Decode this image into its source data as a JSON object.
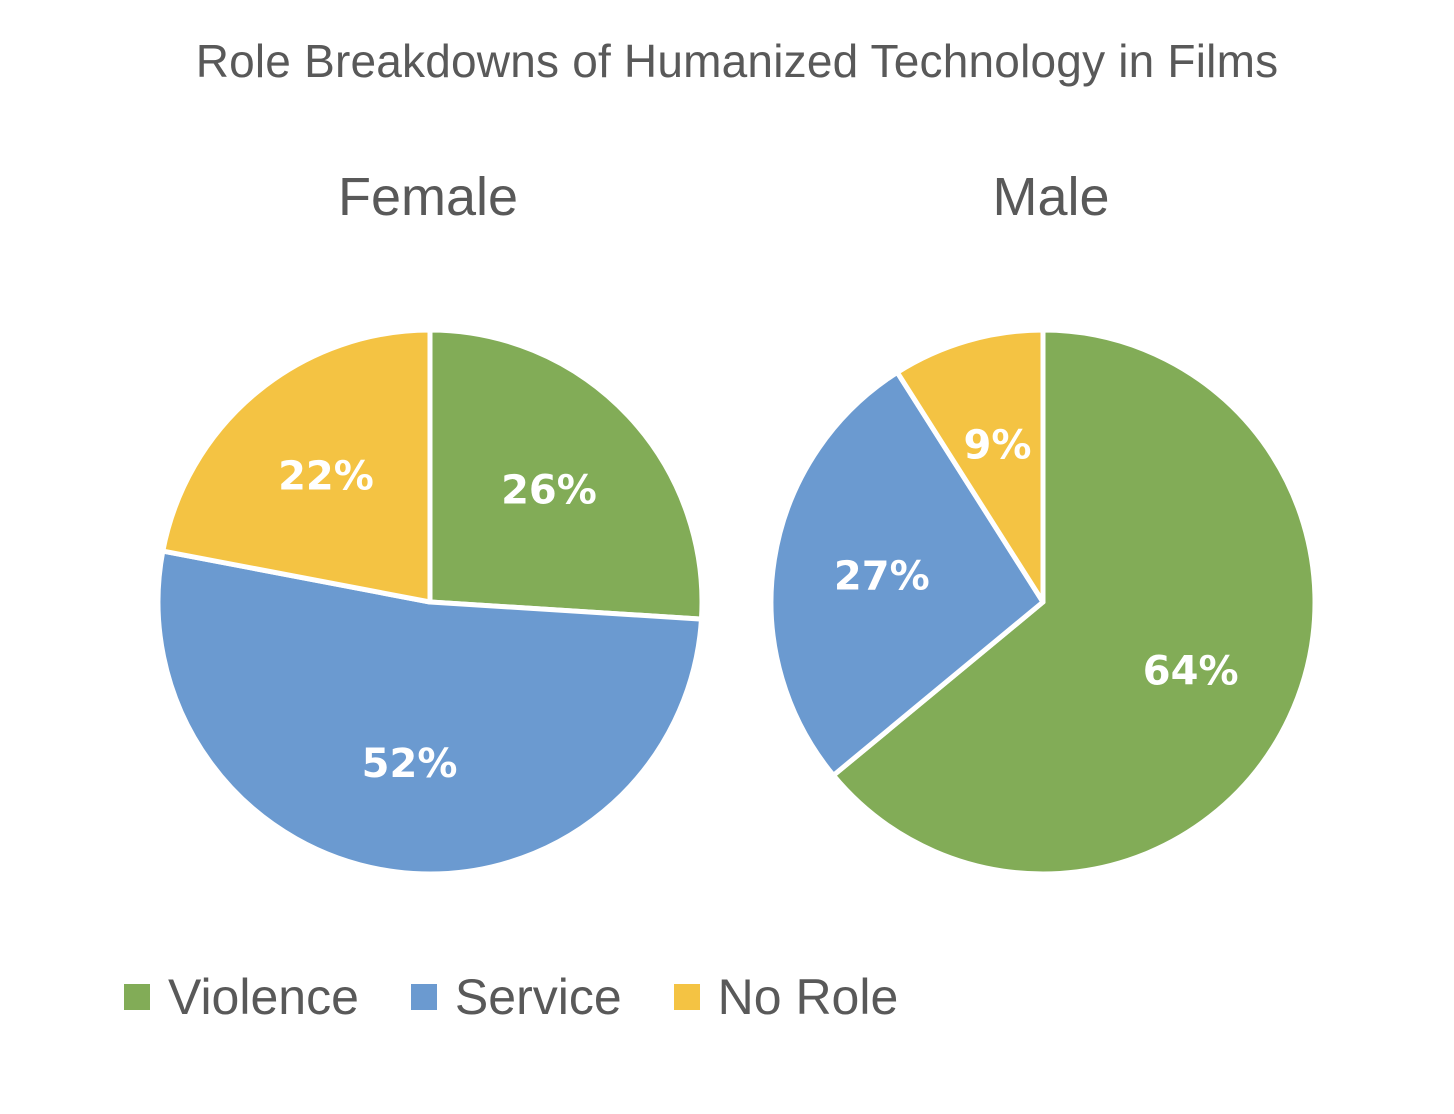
{
  "chart_data": {
    "type": "pie",
    "title": "Role Breakdowns of Humanized Technology in Films",
    "categories": [
      "Violence",
      "Service",
      "No Role"
    ],
    "colors": [
      "#82AC57",
      "#6B9AD0",
      "#F4C343"
    ],
    "series": [
      {
        "name": "Female",
        "values": [
          26,
          52,
          22
        ],
        "labels": [
          "26%",
          "52%",
          "22%"
        ]
      },
      {
        "name": "Male",
        "values": [
          64,
          27,
          9
        ],
        "labels": [
          "64%",
          "27%",
          "9%"
        ]
      }
    ],
    "legend_position": "bottom"
  }
}
